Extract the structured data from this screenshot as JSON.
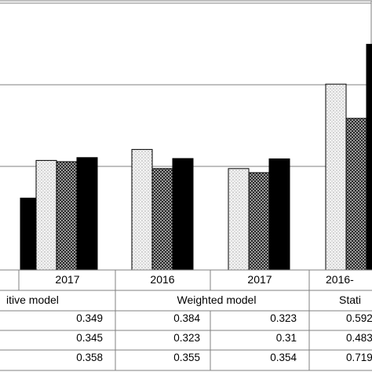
{
  "chart_data": {
    "type": "bar",
    "title": "",
    "xlabel": "",
    "ylabel": "",
    "grid": true,
    "ylim": [
      0,
      0.85
    ],
    "y_gridlines": [
      0.33,
      0.59,
      0.85
    ],
    "colors": {
      "bar_outline": "#000000",
      "dotted_fill": "#f2f2f2",
      "checker_fill": "#4d4d4d",
      "solid_fill": "#000000",
      "grid": "#808080"
    },
    "groups": [
      {
        "year": "",
        "model": "",
        "values": [
          null,
          null,
          0.229
        ]
      },
      {
        "year": "2017",
        "model": "itive model",
        "values": [
          0.349,
          0.345,
          0.358
        ]
      },
      {
        "year": "2016",
        "model": "Weighted model",
        "values": [
          0.384,
          0.323,
          0.355
        ]
      },
      {
        "year": "2017",
        "model": "",
        "values": [
          0.323,
          0.31,
          0.354
        ]
      },
      {
        "year": "2016",
        "model": "Stati",
        "values": [
          0.592,
          0.483,
          0.719
        ]
      }
    ],
    "table_rows": [
      [
        "",
        "0.349",
        "0.384",
        "0.323",
        "0.592"
      ],
      [
        "",
        "0.345",
        "0.323",
        "0.31",
        "0.483"
      ],
      [
        "",
        "0.358",
        "0.355",
        "0.354",
        "0.719"
      ]
    ],
    "cropped_labels": {
      "last_year": "2016-",
      "last_values": [
        "0.592",
        "0.483",
        "0.719"
      ]
    }
  }
}
